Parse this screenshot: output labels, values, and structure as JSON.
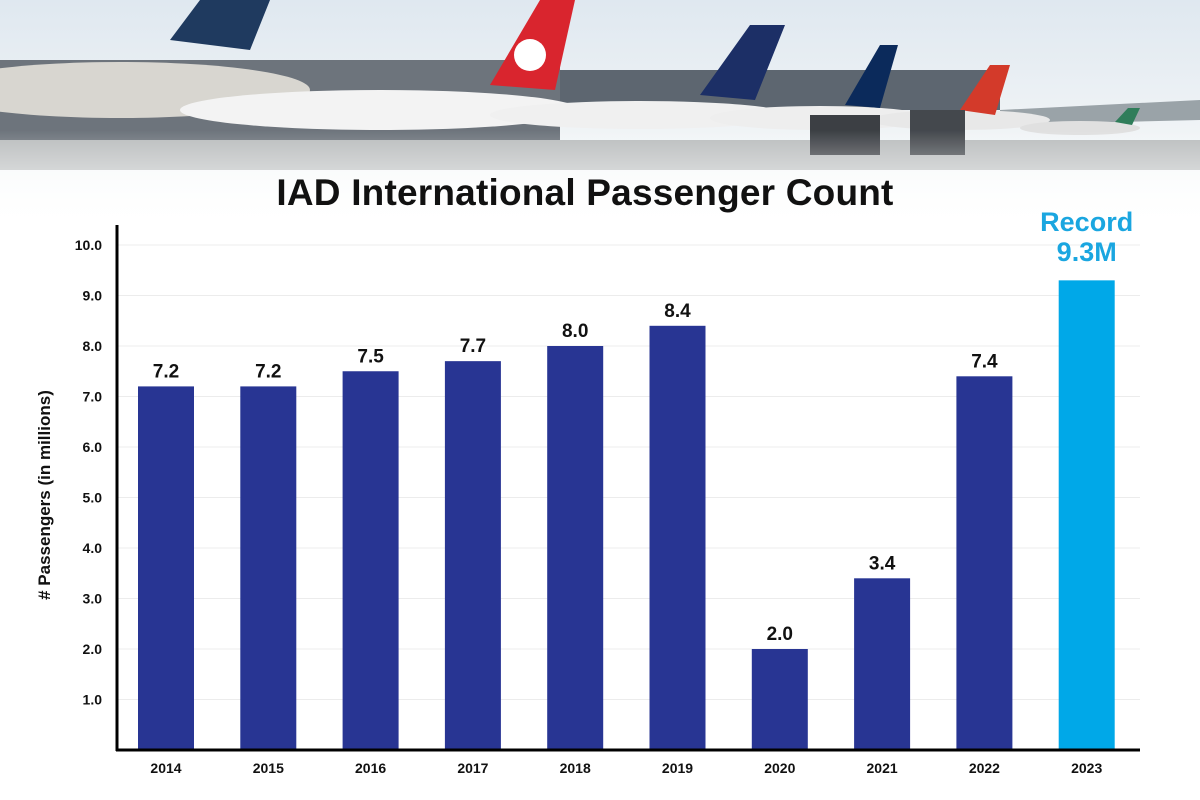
{
  "chart_data": {
    "type": "bar",
    "title": "IAD International Passenger Count",
    "ylabel": "# Passengers (in millions)",
    "xlabel": "",
    "categories": [
      "2014",
      "2015",
      "2016",
      "2017",
      "2018",
      "2019",
      "2020",
      "2021",
      "2022",
      "2023"
    ],
    "values": [
      7.2,
      7.2,
      7.5,
      7.7,
      8.0,
      8.4,
      2.0,
      3.4,
      7.4,
      9.3
    ],
    "data_labels": [
      "7.2",
      "7.2",
      "7.5",
      "7.7",
      "8.0",
      "8.4",
      "2.0",
      "3.4",
      "7.4",
      ""
    ],
    "highlight": {
      "category": "2023",
      "label_line1": "Record",
      "label_line2": "9.3M",
      "color": "#00a8e8"
    },
    "yticks": [
      "1.0",
      "2.0",
      "3.0",
      "4.0",
      "5.0",
      "6.0",
      "7.0",
      "8.0",
      "9.0",
      "10.0"
    ],
    "ylim": [
      0,
      10
    ],
    "grid": true,
    "bar_color": "#283593"
  },
  "header_image": "airport apron with parked international airliners"
}
